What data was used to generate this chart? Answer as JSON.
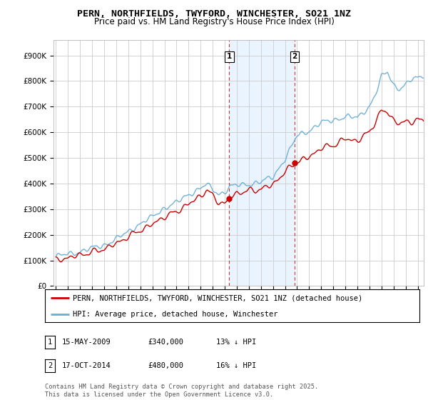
{
  "title": "PERN, NORTHFIELDS, TWYFORD, WINCHESTER, SO21 1NZ",
  "subtitle": "Price paid vs. HM Land Registry's House Price Index (HPI)",
  "ylabel_ticks": [
    "£0",
    "£100K",
    "£200K",
    "£300K",
    "£400K",
    "£500K",
    "£600K",
    "£700K",
    "£800K",
    "£900K"
  ],
  "ytick_values": [
    0,
    100000,
    200000,
    300000,
    400000,
    500000,
    600000,
    700000,
    800000,
    900000
  ],
  "ylim": [
    0,
    960000
  ],
  "xlim_start": 1994.8,
  "xlim_end": 2025.5,
  "sale1_x": 2009.37,
  "sale1_price": 340000,
  "sale2_x": 2014.79,
  "sale2_price": 480000,
  "legend_line1_label": "PERN, NORTHFIELDS, TWYFORD, WINCHESTER, SO21 1NZ (detached house)",
  "legend_line2_label": "HPI: Average price, detached house, Winchester",
  "footer": "Contains HM Land Registry data © Crown copyright and database right 2025.\nThis data is licensed under the Open Government Licence v3.0.",
  "table_rows": [
    {
      "num": "1",
      "date": "15-MAY-2009",
      "price": "£340,000",
      "pct": "13% ↓ HPI"
    },
    {
      "num": "2",
      "date": "17-OCT-2014",
      "price": "£480,000",
      "pct": "16% ↓ HPI"
    }
  ],
  "hpi_color": "#6baed6",
  "price_color": "#cc0000",
  "shaded_color": "#ddeeff",
  "dashed_color": "#cc0000",
  "grid_color": "#cccccc",
  "bg_color": "#ffffff"
}
